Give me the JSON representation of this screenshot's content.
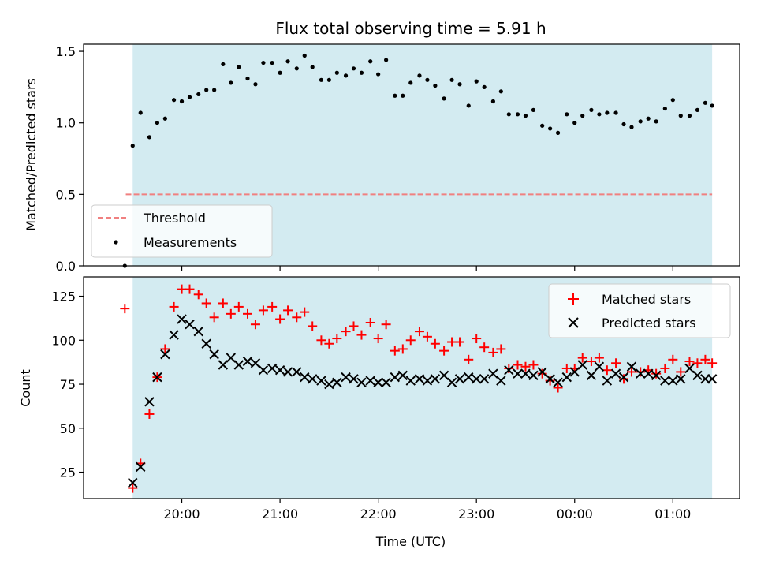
{
  "chart_data": {
    "type": "scatter",
    "title": "Flux total observing time = 5.91 h",
    "xlabel": "Time (UTC)",
    "x_tick_labels": [
      "20:00",
      "21:00",
      "22:00",
      "23:00",
      "00:00",
      "01:00"
    ],
    "x_ticks_hours": [
      20,
      21,
      22,
      23,
      24,
      25
    ],
    "x_range_hours": [
      19.0,
      25.68
    ],
    "observing_window_hours": [
      19.5,
      25.4
    ],
    "window_color": "#d3ebf1",
    "panels": [
      {
        "ylabel": "Matched/Predicted stars",
        "ylim": [
          0,
          1.55
        ],
        "y_ticks": [
          0.0,
          0.5,
          1.0,
          1.5
        ],
        "y_tick_labels": [
          "0.0",
          "0.5",
          "1.0",
          "1.5"
        ],
        "legend_position": "lower-left",
        "threshold": {
          "name": "Threshold",
          "value": 0.5,
          "x_range": [
            19.43,
            25.4
          ],
          "color": "#f08080"
        },
        "series": [
          {
            "name": "Measurements",
            "marker": "dot",
            "color": "#000000",
            "x": [
              19.42,
              19.5,
              19.58,
              19.67,
              19.75,
              19.83,
              19.92,
              20.0,
              20.08,
              20.17,
              20.25,
              20.33,
              20.42,
              20.5,
              20.58,
              20.67,
              20.75,
              20.83,
              20.92,
              21.0,
              21.08,
              21.17,
              21.25,
              21.33,
              21.42,
              21.5,
              21.58,
              21.67,
              21.75,
              21.83,
              21.92,
              22.0,
              22.08,
              22.17,
              22.25,
              22.33,
              22.42,
              22.5,
              22.58,
              22.67,
              22.75,
              22.83,
              22.92,
              23.0,
              23.08,
              23.17,
              23.25,
              23.33,
              23.42,
              23.5,
              23.58,
              23.67,
              23.75,
              23.83,
              23.92,
              24.0,
              24.08,
              24.17,
              24.25,
              24.33,
              24.42,
              24.5,
              24.58,
              24.67,
              24.75,
              24.83,
              24.92,
              25.0,
              25.08,
              25.17,
              25.25,
              25.33,
              25.4
            ],
            "y": [
              0.0,
              0.84,
              1.07,
              0.9,
              1.0,
              1.03,
              1.16,
              1.15,
              1.18,
              1.2,
              1.23,
              1.23,
              1.41,
              1.28,
              1.39,
              1.31,
              1.27,
              1.42,
              1.42,
              1.35,
              1.43,
              1.38,
              1.47,
              1.39,
              1.3,
              1.3,
              1.35,
              1.33,
              1.38,
              1.35,
              1.43,
              1.34,
              1.44,
              1.19,
              1.19,
              1.28,
              1.33,
              1.3,
              1.26,
              1.17,
              1.3,
              1.27,
              1.12,
              1.29,
              1.25,
              1.15,
              1.22,
              1.06,
              1.06,
              1.05,
              1.09,
              0.98,
              0.96,
              0.93,
              1.06,
              1.0,
              1.05,
              1.09,
              1.06,
              1.07,
              1.07,
              0.99,
              0.97,
              1.01,
              1.03,
              1.01,
              1.1,
              1.16,
              1.05,
              1.05,
              1.09,
              1.14,
              1.12
            ]
          }
        ]
      },
      {
        "ylabel": "Count",
        "ylim": [
          10,
          136
        ],
        "y_ticks": [
          25,
          50,
          75,
          100,
          125
        ],
        "y_tick_labels": [
          "25",
          "50",
          "75",
          "100",
          "125"
        ],
        "legend_position": "top-right",
        "series": [
          {
            "name": "Matched stars",
            "marker": "plus",
            "color": "#ff0000",
            "x": [
              19.42,
              19.5,
              19.58,
              19.67,
              19.75,
              19.83,
              19.92,
              20.0,
              20.08,
              20.17,
              20.25,
              20.33,
              20.42,
              20.5,
              20.58,
              20.67,
              20.75,
              20.83,
              20.92,
              21.0,
              21.08,
              21.17,
              21.25,
              21.33,
              21.42,
              21.5,
              21.58,
              21.67,
              21.75,
              21.83,
              21.92,
              22.0,
              22.08,
              22.17,
              22.25,
              22.33,
              22.42,
              22.5,
              22.58,
              22.67,
              22.75,
              22.83,
              22.92,
              23.0,
              23.08,
              23.17,
              23.25,
              23.33,
              23.42,
              23.5,
              23.58,
              23.67,
              23.75,
              23.83,
              23.92,
              24.0,
              24.08,
              24.17,
              24.25,
              24.33,
              24.42,
              24.5,
              24.58,
              24.67,
              24.75,
              24.83,
              24.92,
              25.0,
              25.08,
              25.17,
              25.25,
              25.33,
              25.4
            ],
            "y": [
              118,
              16,
              30,
              58,
              79,
              95,
              119,
              129,
              129,
              126,
              121,
              113,
              121,
              115,
              119,
              115,
              109,
              117,
              119,
              112,
              117,
              113,
              116,
              108,
              100,
              98,
              101,
              105,
              108,
              103,
              110,
              101,
              109,
              94,
              95,
              100,
              105,
              102,
              98,
              94,
              99,
              99,
              89,
              101,
              96,
              93,
              95,
              84,
              86,
              85,
              86,
              81,
              77,
              73,
              84,
              84,
              90,
              88,
              90,
              83,
              87,
              78,
              82,
              82,
              83,
              81,
              84,
              89,
              82,
              88,
              87,
              89,
              87
            ]
          },
          {
            "name": "Predicted stars",
            "marker": "x",
            "color": "#000000",
            "x": [
              19.5,
              19.58,
              19.67,
              19.75,
              19.83,
              19.92,
              20.0,
              20.08,
              20.17,
              20.25,
              20.33,
              20.42,
              20.5,
              20.58,
              20.67,
              20.75,
              20.83,
              20.92,
              21.0,
              21.08,
              21.17,
              21.25,
              21.33,
              21.42,
              21.5,
              21.58,
              21.67,
              21.75,
              21.83,
              21.92,
              22.0,
              22.08,
              22.17,
              22.25,
              22.33,
              22.42,
              22.5,
              22.58,
              22.67,
              22.75,
              22.83,
              22.92,
              23.0,
              23.08,
              23.17,
              23.25,
              23.33,
              23.42,
              23.5,
              23.58,
              23.67,
              23.75,
              23.83,
              23.92,
              24.0,
              24.08,
              24.17,
              24.25,
              24.33,
              24.42,
              24.5,
              24.58,
              24.67,
              24.75,
              24.83,
              24.92,
              25.0,
              25.08,
              25.17,
              25.25,
              25.33,
              25.4
            ],
            "y": [
              19,
              28,
              65,
              79,
              92,
              103,
              112,
              109,
              105,
              98,
              92,
              86,
              90,
              86,
              88,
              87,
              83,
              84,
              83,
              82,
              82,
              79,
              78,
              77,
              75,
              76,
              79,
              78,
              76,
              77,
              76,
              76,
              79,
              80,
              77,
              78,
              77,
              78,
              80,
              76,
              78,
              79,
              78,
              78,
              81,
              77,
              83,
              81,
              81,
              80,
              82,
              78,
              76,
              79,
              82,
              86,
              80,
              85,
              77,
              81,
              79,
              85,
              81,
              81,
              80,
              77,
              77,
              78,
              84,
              80,
              78,
              78
            ]
          }
        ]
      }
    ]
  }
}
